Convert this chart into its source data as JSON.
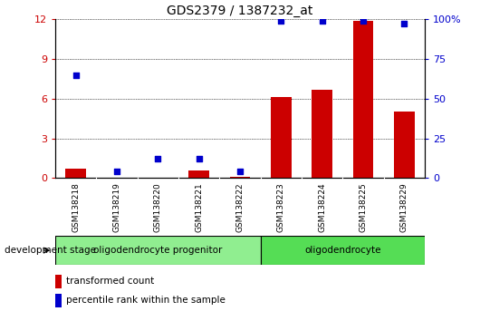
{
  "title": "GDS2379 / 1387232_at",
  "samples": [
    "GSM138218",
    "GSM138219",
    "GSM138220",
    "GSM138221",
    "GSM138222",
    "GSM138223",
    "GSM138224",
    "GSM138225",
    "GSM138229"
  ],
  "red_bars": [
    0.7,
    0.02,
    0.02,
    0.55,
    0.08,
    6.1,
    6.7,
    11.9,
    5.0
  ],
  "blue_dots_pct": [
    65,
    4,
    12,
    12,
    4,
    99,
    99,
    99,
    97
  ],
  "ylim_left": [
    0,
    12
  ],
  "ylim_right": [
    0,
    100
  ],
  "yticks_left": [
    0,
    3,
    6,
    9,
    12
  ],
  "yticks_right": [
    0,
    25,
    50,
    75,
    100
  ],
  "ytick_labels_left": [
    "0",
    "3",
    "6",
    "9",
    "12"
  ],
  "ytick_labels_right": [
    "0",
    "25",
    "50",
    "75",
    "100%"
  ],
  "left_color": "#cc0000",
  "right_color": "#0000cc",
  "bar_color": "#cc0000",
  "dot_color": "#0000cc",
  "stage_groups": [
    {
      "label": "oligodendrocyte progenitor",
      "n": 5,
      "color": "#90ee90"
    },
    {
      "label": "oligodendrocyte",
      "n": 4,
      "color": "#55dd55"
    }
  ],
  "legend_red": "transformed count",
  "legend_blue": "percentile rank within the sample",
  "dev_stage_label": "development stage",
  "xtick_bg": "#cccccc",
  "plot_bg": "#ffffff"
}
